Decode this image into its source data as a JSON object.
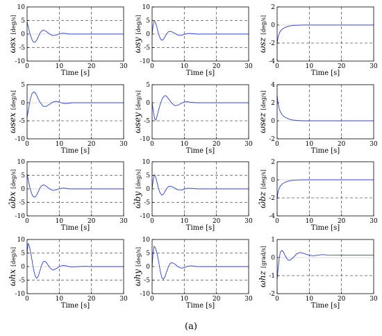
{
  "caption": "(a)",
  "colors": {
    "series": "#2b3fd8",
    "dashed_ref": "#555555",
    "axis": "#000000"
  },
  "chart_data": [
    {
      "type": "line",
      "panel_ylabel": "ωsx",
      "unit": "[deg/s]",
      "xlabel": "Time [s]",
      "xlim": [
        0,
        30
      ],
      "ylim": [
        -10,
        10
      ],
      "xticks": [
        0,
        10,
        20,
        30
      ],
      "yticks": [
        -10,
        -5,
        0,
        5,
        10
      ],
      "hlines": [
        -5,
        5
      ],
      "vlines": [
        10,
        20
      ],
      "x": [
        0,
        0.4,
        0.8,
        1.2,
        1.6,
        2,
        2.5,
        3,
        3.5,
        4,
        4.5,
        5,
        5.5,
        6,
        7,
        8,
        9,
        10,
        11,
        12,
        13,
        14,
        16,
        18,
        20,
        25,
        30
      ],
      "y": [
        4.5,
        2.5,
        0.5,
        -1,
        -2.3,
        -3,
        -3,
        -2.2,
        -1,
        0.3,
        1.1,
        1.4,
        1.3,
        0.9,
        0,
        -0.6,
        -0.4,
        0,
        0.3,
        0.2,
        0,
        0,
        0,
        0,
        0,
        0,
        0
      ]
    },
    {
      "type": "line",
      "panel_ylabel": "ωsy",
      "unit": "[deg/s]",
      "xlabel": "Time [s]",
      "xlim": [
        0,
        30
      ],
      "ylim": [
        -10,
        10
      ],
      "xticks": [
        0,
        10,
        20,
        30
      ],
      "yticks": [
        -10,
        -5,
        0,
        5,
        10
      ],
      "hlines": [
        -5,
        5
      ],
      "vlines": [
        10,
        20
      ],
      "x": [
        0,
        0.3,
        0.7,
        1,
        1.5,
        2,
        2.5,
        3,
        3.5,
        4,
        4.5,
        5,
        5.5,
        6,
        7,
        8,
        9,
        10,
        11,
        12,
        14,
        16,
        20,
        25,
        30
      ],
      "y": [
        0,
        3,
        4.8,
        4.5,
        2.5,
        0,
        -1.6,
        -2.3,
        -2,
        -1,
        0,
        0.8,
        1,
        0.9,
        0.3,
        -0.4,
        -0.5,
        -0.1,
        0.2,
        0.2,
        0,
        0,
        0,
        0,
        0
      ]
    },
    {
      "type": "line",
      "panel_ylabel": "ωsz",
      "unit": "[deg/s]",
      "xlabel": "Time [s]",
      "xlim": [
        0,
        30
      ],
      "ylim": [
        -4,
        2
      ],
      "xticks": [
        0,
        10,
        20,
        30
      ],
      "yticks": [
        -4,
        -2,
        0,
        2
      ],
      "hlines": [
        -2
      ],
      "vlines": [
        10,
        20
      ],
      "x": [
        0,
        0.3,
        0.7,
        1,
        1.5,
        2,
        3,
        4,
        5,
        6,
        8,
        10,
        15,
        20,
        30
      ],
      "y": [
        -2.1,
        -1.3,
        -0.9,
        -0.7,
        -0.5,
        -0.35,
        -0.2,
        -0.1,
        -0.05,
        -0.02,
        0,
        0,
        0,
        0,
        0
      ]
    },
    {
      "type": "line",
      "panel_ylabel": "ωsex",
      "unit": "[deg/s]",
      "xlabel": "Time [s]",
      "xlim": [
        0,
        30
      ],
      "ylim": [
        -10,
        5
      ],
      "xticks": [
        0,
        10,
        20,
        30
      ],
      "yticks": [
        -10,
        -5,
        0,
        5
      ],
      "hlines": [
        -5
      ],
      "vlines": [
        10,
        20
      ],
      "x": [
        0,
        0.5,
        1,
        1.5,
        2,
        2.5,
        3,
        3.5,
        4,
        5,
        6,
        7,
        8,
        9,
        10,
        11,
        12,
        13,
        14,
        16,
        20,
        25,
        30
      ],
      "y": [
        -4,
        -1.5,
        1,
        2.5,
        3,
        2.8,
        2,
        1,
        0.2,
        -1,
        -1,
        -0.4,
        0.2,
        0.4,
        0.2,
        -0.1,
        -0.2,
        -0.1,
        0,
        0,
        0,
        0,
        0
      ]
    },
    {
      "type": "line",
      "panel_ylabel": "ωsey",
      "unit": "[deg/s]",
      "xlabel": "Time [s]",
      "xlim": [
        0,
        30
      ],
      "ylim": [
        -10,
        5
      ],
      "xticks": [
        0,
        10,
        20,
        30
      ],
      "yticks": [
        -10,
        -5,
        0,
        5
      ],
      "hlines": [
        -5
      ],
      "vlines": [
        10,
        20
      ],
      "x": [
        0,
        0.4,
        0.8,
        1.2,
        1.6,
        2,
        2.5,
        3,
        3.5,
        4,
        4.5,
        5,
        6,
        7,
        8,
        9,
        10,
        11,
        12,
        14,
        16,
        20,
        25,
        30
      ],
      "y": [
        0,
        -2.5,
        -4.5,
        -4.8,
        -3.5,
        -2,
        -0.5,
        0.8,
        1.6,
        2,
        1.8,
        1.2,
        0,
        -0.8,
        -0.7,
        -0.2,
        0.2,
        0.3,
        0.1,
        0,
        0,
        0,
        0,
        0
      ]
    },
    {
      "type": "line",
      "panel_ylabel": "ωsez",
      "unit": "[deg/s]",
      "xlabel": "Time [s]",
      "xlim": [
        0,
        30
      ],
      "ylim": [
        -2,
        4
      ],
      "xticks": [
        0,
        10,
        20,
        30
      ],
      "yticks": [
        -2,
        0,
        2,
        4
      ],
      "hlines": [],
      "vlines": [
        10,
        20
      ],
      "x": [
        0,
        0.3,
        0.7,
        1,
        1.5,
        2,
        3,
        4,
        5,
        6,
        8,
        10,
        15,
        20,
        30
      ],
      "y": [
        2.8,
        1.9,
        1.3,
        1,
        0.7,
        0.5,
        0.3,
        0.15,
        0.08,
        0.04,
        0,
        0,
        0,
        0,
        0
      ]
    },
    {
      "type": "line",
      "panel_ylabel": "ω̂bx",
      "unit": "[deg/s]",
      "xlabel": "Time [s]",
      "xlim": [
        0,
        30
      ],
      "ylim": [
        -10,
        10
      ],
      "xticks": [
        0,
        10,
        20,
        30
      ],
      "yticks": [
        -10,
        -5,
        0,
        5,
        10
      ],
      "hlines": [
        -5,
        5
      ],
      "vlines": [
        10,
        20
      ],
      "x": [
        0,
        0.4,
        0.8,
        1.2,
        1.6,
        2,
        2.5,
        3,
        3.5,
        4,
        4.5,
        5,
        5.5,
        6,
        7,
        8,
        9,
        10,
        11,
        12,
        13,
        14,
        16,
        18,
        20,
        25,
        30
      ],
      "y": [
        5.5,
        3,
        0.8,
        -1,
        -2.3,
        -3,
        -3,
        -2.2,
        -1,
        0.3,
        1.1,
        1.4,
        1.3,
        0.9,
        0,
        -0.6,
        -0.4,
        0,
        0.3,
        0.2,
        0,
        0,
        0,
        0,
        0,
        0,
        0
      ]
    },
    {
      "type": "line",
      "panel_ylabel": "ω̂by",
      "unit": "[deg/s]",
      "xlabel": "Time [s]",
      "xlim": [
        0,
        30
      ],
      "ylim": [
        -10,
        10
      ],
      "xticks": [
        0,
        10,
        20,
        30
      ],
      "yticks": [
        -10,
        -5,
        0,
        5,
        10
      ],
      "hlines": [
        -5,
        5
      ],
      "vlines": [
        10,
        20
      ],
      "x": [
        0,
        0.3,
        0.7,
        1,
        1.5,
        2,
        2.5,
        3,
        3.5,
        4,
        4.5,
        5,
        5.5,
        6,
        7,
        8,
        9,
        10,
        11,
        12,
        14,
        16,
        20,
        25,
        30
      ],
      "y": [
        0,
        3,
        5.2,
        4.8,
        2.6,
        0,
        -1.6,
        -2.3,
        -2,
        -1,
        0,
        0.8,
        1,
        0.9,
        0.3,
        -0.4,
        -0.5,
        -0.1,
        0.2,
        0.2,
        0,
        0,
        0,
        0,
        0
      ]
    },
    {
      "type": "line",
      "panel_ylabel": "ω̂bz",
      "unit": "[deg/s]",
      "xlabel": "Time [s]",
      "xlim": [
        0,
        30
      ],
      "ylim": [
        -4,
        2
      ],
      "xticks": [
        0,
        10,
        20,
        30
      ],
      "yticks": [
        -4,
        -2,
        0,
        2
      ],
      "hlines": [
        -2
      ],
      "vlines": [
        10,
        20
      ],
      "x": [
        0,
        0.3,
        0.7,
        1,
        1.5,
        2,
        3,
        4,
        5,
        6,
        8,
        10,
        15,
        20,
        30
      ],
      "y": [
        -2.1,
        -1.3,
        -0.9,
        -0.7,
        -0.5,
        -0.35,
        -0.2,
        -0.1,
        -0.05,
        -0.02,
        0,
        0,
        0,
        0,
        0
      ]
    },
    {
      "type": "line",
      "panel_ylabel": "ωhx",
      "unit": "[deg/s]",
      "xlabel": "Time [s]",
      "xlim": [
        0,
        30
      ],
      "ylim": [
        -10,
        10
      ],
      "xticks": [
        0,
        10,
        20,
        30
      ],
      "yticks": [
        -10,
        -5,
        0,
        5,
        10
      ],
      "hlines": [
        -5,
        5
      ],
      "vlines": [
        10,
        20
      ],
      "x": [
        0,
        0.3,
        0.6,
        1,
        1.5,
        2,
        2.5,
        3,
        3.5,
        4,
        4.5,
        5,
        5.5,
        6,
        6.5,
        7,
        8,
        9,
        10,
        11,
        12,
        13,
        14,
        16,
        18,
        20,
        22,
        25,
        30
      ],
      "y": [
        5,
        8.5,
        8,
        6,
        2.5,
        -1,
        -3.5,
        -4.3,
        -3.5,
        -1.5,
        0.5,
        1.8,
        2,
        1.5,
        0.6,
        -0.3,
        -1.3,
        -0.8,
        0,
        0.4,
        0.3,
        0,
        -0.1,
        0,
        0.1,
        0,
        0,
        0,
        0
      ]
    },
    {
      "type": "line",
      "panel_ylabel": "ωhy",
      "unit": "[deg/s]",
      "xlabel": "Time [s]",
      "xlim": [
        0,
        30
      ],
      "ylim": [
        -10,
        10
      ],
      "xticks": [
        0,
        10,
        20,
        30
      ],
      "yticks": [
        -10,
        -5,
        0,
        5,
        10
      ],
      "hlines": [
        -5,
        5
      ],
      "vlines": [
        10,
        20
      ],
      "x": [
        0,
        0.3,
        0.6,
        1,
        1.5,
        2,
        2.5,
        3,
        3.5,
        4,
        4.5,
        5,
        5.5,
        6,
        7,
        8,
        9,
        10,
        11,
        12,
        14,
        16,
        20,
        25,
        30
      ],
      "y": [
        0,
        5,
        7.5,
        7,
        5,
        2,
        -1.5,
        -4,
        -4.7,
        -3.8,
        -2,
        -0.3,
        1,
        1.5,
        1,
        0,
        -0.6,
        -0.4,
        0.1,
        0.3,
        0,
        0,
        0,
        0,
        0
      ]
    },
    {
      "type": "line",
      "panel_ylabel": "ωhz",
      "unit": "[grad/s]",
      "xlabel": "Time [s]",
      "xlim": [
        0,
        30
      ],
      "ylim": [
        -2,
        1
      ],
      "xticks": [
        0,
        10,
        20,
        30
      ],
      "yticks": [
        -2,
        -1,
        0,
        1
      ],
      "hlines": [
        -1
      ],
      "vlines": [
        10,
        20
      ],
      "x": [
        0,
        0.3,
        0.7,
        1,
        1.5,
        2,
        2.5,
        3,
        3.5,
        4,
        5,
        6,
        7,
        8,
        9,
        10,
        11,
        12,
        14,
        16,
        20,
        25,
        30
      ],
      "y": [
        -1.2,
        -0.6,
        0,
        0.3,
        0.4,
        0.3,
        0.1,
        -0.05,
        -0.15,
        -0.15,
        0,
        0.2,
        0.28,
        0.25,
        0.18,
        0.13,
        0.1,
        0.12,
        0.16,
        0.14,
        0.13,
        0.13,
        0.13
      ]
    }
  ]
}
